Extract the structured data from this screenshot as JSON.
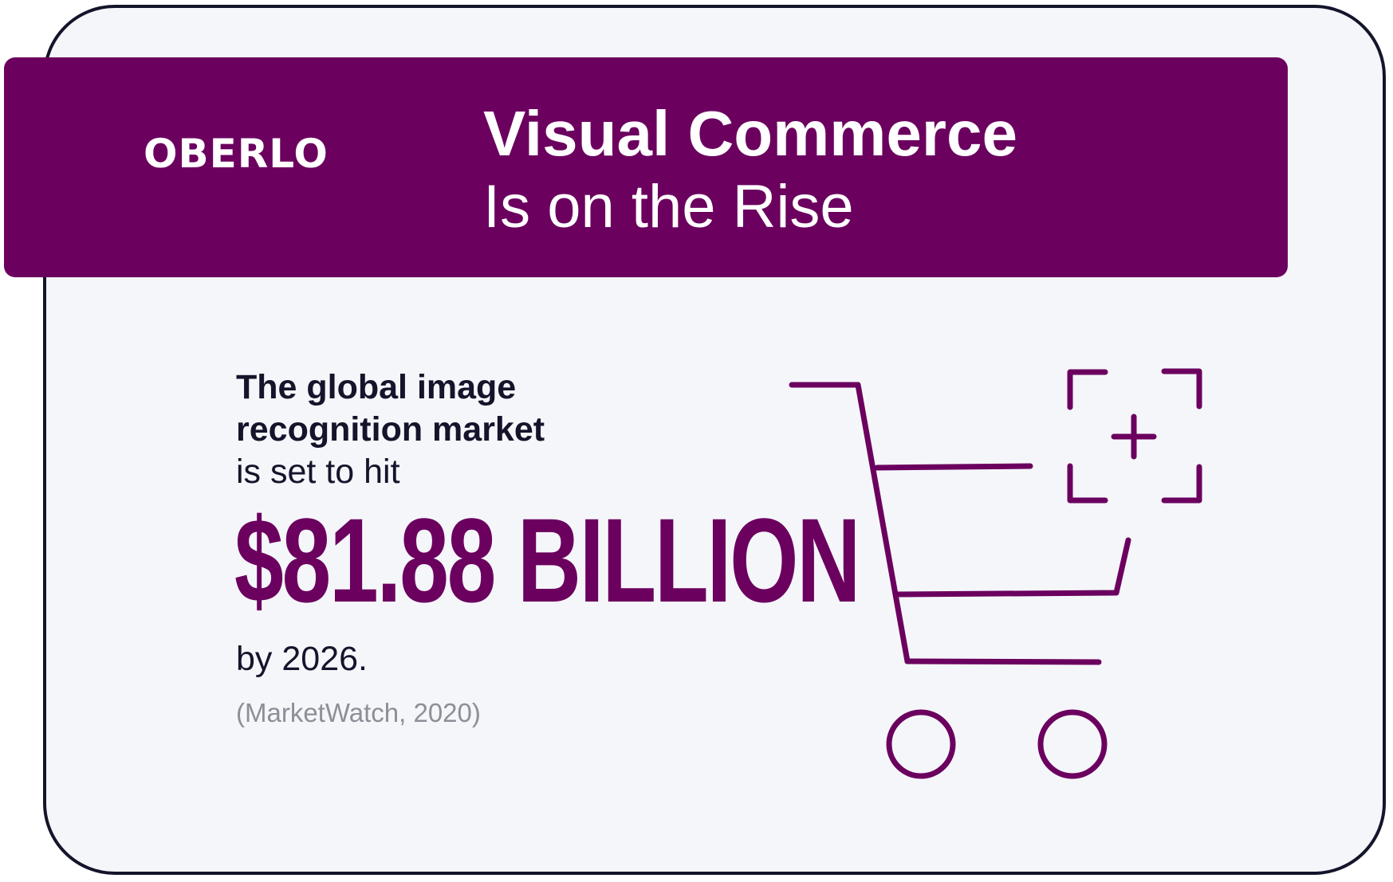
{
  "brand": {
    "logo_text": "OBERLO",
    "primary_color": "#6b005f",
    "card_background": "#f5f6fa",
    "outline_color": "#14142b"
  },
  "header": {
    "title_line1": "Visual Commerce",
    "title_line2": "Is on the Rise"
  },
  "stat": {
    "lead_line1": "The global image",
    "lead_line2": "recognition market",
    "lead_line3": "is set to hit",
    "value": "$81.88 BILLION",
    "suffix": "by 2026.",
    "source": "(MarketWatch, 2020)"
  },
  "illustration": {
    "icon": "shopping-cart-with-add-scan-icon"
  }
}
